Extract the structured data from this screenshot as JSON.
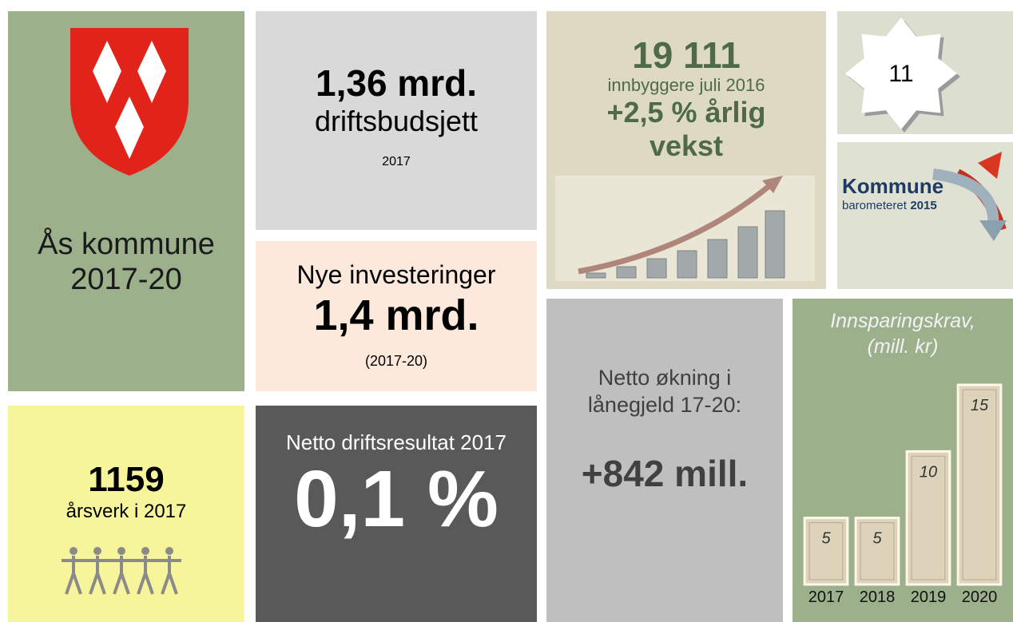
{
  "tiles": {
    "municipality": {
      "name": "Ås kommune",
      "period": "2017-20"
    },
    "budget": {
      "amount": "1,36 mrd.",
      "label": "driftsbudsjett",
      "year": "2017"
    },
    "investments": {
      "label": "Nye investeringer",
      "amount": "1,4 mrd.",
      "period": "(2017-20)"
    },
    "population": {
      "count": "19 111",
      "label": "innbyggere juli 2016",
      "growth": "+2,5 % årlig vekst"
    },
    "ranking": {
      "value": 11
    },
    "barometer": {
      "brand": "Kommune",
      "subtitle": "barometeret",
      "year": "2015"
    },
    "staff": {
      "count": 1159,
      "label": "årsverk i 2017"
    },
    "result": {
      "label": "Netto driftsresultat 2017",
      "value": "0,1 %"
    },
    "debt": {
      "label": "Netto økning i lånegjeld 17-20:",
      "value": "+842 mill."
    }
  },
  "chart_data": {
    "type": "bar",
    "title": "Innsparingskrav,",
    "subtitle": "(mill. kr)",
    "categories": [
      "2017",
      "2018",
      "2019",
      "2020"
    ],
    "values": [
      5,
      5,
      10,
      15
    ],
    "color": "#ddd3bb"
  }
}
